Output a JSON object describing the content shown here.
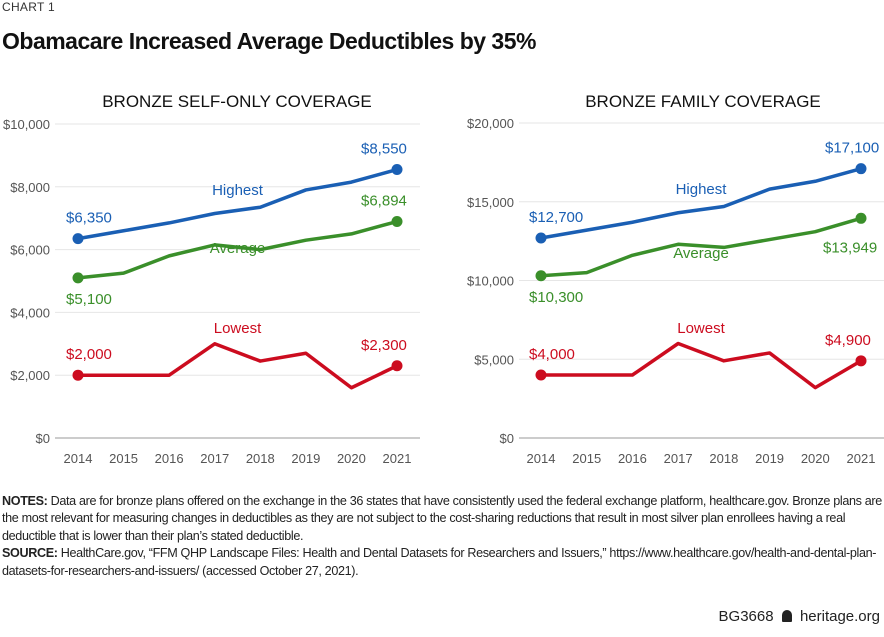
{
  "header": {
    "kicker": "CHART 1",
    "title": "Obamacare Increased Average Deductibles by 35%"
  },
  "colors": {
    "Highest": "#1a5fb4",
    "Average": "#3a8f2a",
    "Lowest": "#cc0c1f",
    "grid": "#e6e6e6",
    "axis": "#999999"
  },
  "chart_data": [
    {
      "type": "line",
      "title": "BRONZE SELF-ONLY COVERAGE",
      "categories": [
        "2014",
        "2015",
        "2016",
        "2017",
        "2018",
        "2019",
        "2020",
        "2021"
      ],
      "ylim": [
        0,
        10000
      ],
      "yticks": [
        0,
        2000,
        4000,
        6000,
        8000,
        10000
      ],
      "ytick_labels": [
        "$0",
        "$2,000",
        "$4,000",
        "$6,000",
        "$8,000",
        "$10,000"
      ],
      "grid": true,
      "series": [
        {
          "name": "Highest",
          "values": [
            6350,
            6600,
            6850,
            7150,
            7350,
            7900,
            8150,
            8550
          ],
          "start_label": "$6,350",
          "end_label": "$8,550"
        },
        {
          "name": "Average",
          "values": [
            5100,
            5250,
            5800,
            6150,
            6000,
            6300,
            6500,
            6894
          ],
          "start_label": "$5,100",
          "end_label": "$6,894"
        },
        {
          "name": "Lowest",
          "values": [
            2000,
            2000,
            2000,
            3000,
            2450,
            2700,
            1600,
            2300
          ],
          "start_label": "$2,000",
          "end_label": "$2,300"
        }
      ]
    },
    {
      "type": "line",
      "title": "BRONZE FAMILY COVERAGE",
      "categories": [
        "2014",
        "2015",
        "2016",
        "2017",
        "2018",
        "2019",
        "2020",
        "2021"
      ],
      "ylim": [
        0,
        20000
      ],
      "yticks": [
        0,
        5000,
        10000,
        15000,
        20000
      ],
      "ytick_labels": [
        "$0",
        "$5,000",
        "$10,000",
        "$15,000",
        "$20,000"
      ],
      "grid": true,
      "series": [
        {
          "name": "Highest",
          "values": [
            12700,
            13200,
            13700,
            14300,
            14700,
            15800,
            16300,
            17100
          ],
          "start_label": "$12,700",
          "end_label": "$17,100"
        },
        {
          "name": "Average",
          "values": [
            10300,
            10500,
            11600,
            12300,
            12100,
            12600,
            13100,
            13949
          ],
          "start_label": "$10,300",
          "end_label": "$13,949"
        },
        {
          "name": "Lowest",
          "values": [
            4000,
            4000,
            4000,
            6000,
            4900,
            5400,
            3200,
            4900
          ],
          "start_label": "$4,000",
          "end_label": "$4,900"
        }
      ]
    }
  ],
  "notes": {
    "notes_label": "NOTES:",
    "notes_text": " Data are for bronze plans offered on the exchange in the 36 states that have consistently used the federal exchange platform, healthcare.gov. Bronze plans are the most relevant for measuring changes in deductibles as they are not subject to the cost-sharing reductions that result in most silver plan enrollees having a real deductible that is lower than their plan’s stated deductible.",
    "source_label": "SOURCE:",
    "source_text": " HealthCare.gov, “FFM QHP Landscape Files: Health and Dental Datasets for Researchers and Issuers,” https://www.healthcare.gov/health-and-dental-plan-datasets-for-researchers-and-issuers/ (accessed October 27, 2021)."
  },
  "footer": {
    "code": "BG3668",
    "logo_icon": "liberty-bell-icon",
    "site": "heritage.org"
  }
}
